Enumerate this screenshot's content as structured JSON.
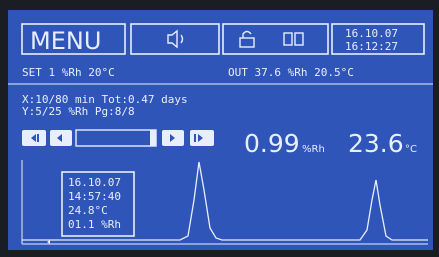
{
  "header": {
    "menu": "MENU",
    "date": "16.10.07",
    "time": "16:12:27"
  },
  "status": {
    "set": "SET 1 %Rh 20°C",
    "out": "OUT 37.6 %Rh 20.5°C"
  },
  "info": {
    "x_line": "X:10/80 min Tot:0.47 days",
    "y_line": "Y:5/25 %Rh Pg:8/8"
  },
  "readings": {
    "humidity": "0.99",
    "humidity_unit": "%Rh",
    "temperature": "23.6",
    "temperature_unit": "°C"
  },
  "cursor_box": {
    "lines": [
      "16.10.07",
      "14:57:40",
      "24.8°C",
      "01.1 %Rh"
    ]
  }
}
